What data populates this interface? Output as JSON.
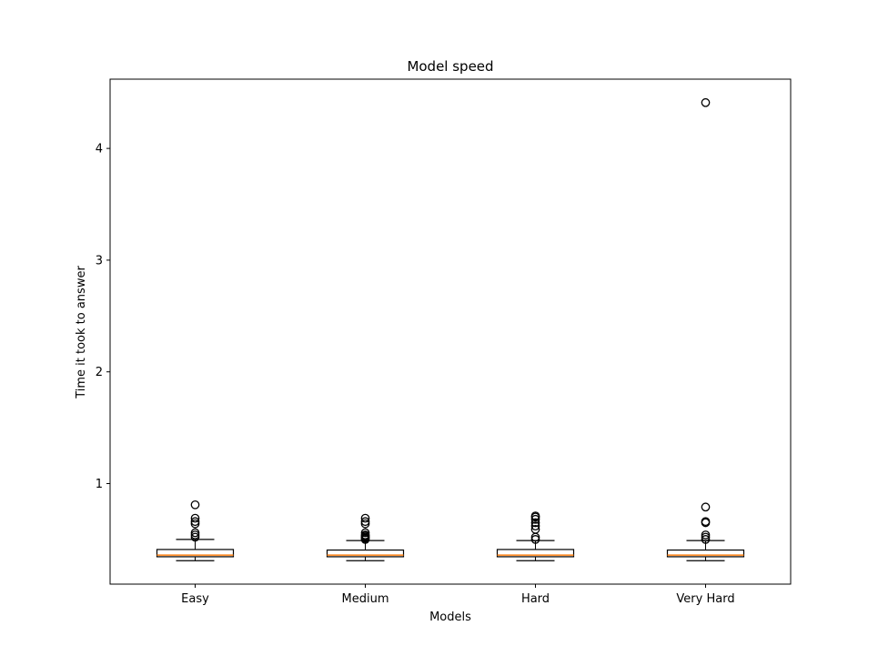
{
  "chart_data": {
    "type": "boxplot",
    "title": "Model speed",
    "xlabel": "Models",
    "ylabel": "Time it took to answer",
    "ylim": [
      0.1,
      4.62
    ],
    "yticks": [
      1,
      2,
      3,
      4
    ],
    "grid": false,
    "categories": [
      "Easy",
      "Medium",
      "Hard",
      "Very Hard"
    ],
    "boxes": [
      {
        "name": "Easy",
        "whisker_low": 0.31,
        "q1": 0.345,
        "median": 0.36,
        "q3": 0.41,
        "whisker_high": 0.5,
        "outliers": [
          0.52,
          0.54,
          0.56,
          0.64,
          0.66,
          0.69,
          0.81
        ]
      },
      {
        "name": "Medium",
        "whisker_low": 0.31,
        "q1": 0.345,
        "median": 0.36,
        "q3": 0.405,
        "whisker_high": 0.49,
        "outliers": [
          0.5,
          0.51,
          0.52,
          0.53,
          0.54,
          0.56,
          0.64,
          0.66,
          0.69
        ]
      },
      {
        "name": "Hard",
        "whisker_low": 0.31,
        "q1": 0.345,
        "median": 0.36,
        "q3": 0.41,
        "whisker_high": 0.49,
        "outliers": [
          0.5,
          0.52,
          0.59,
          0.62,
          0.65,
          0.68,
          0.7,
          0.71
        ]
      },
      {
        "name": "Very Hard",
        "whisker_low": 0.31,
        "q1": 0.345,
        "median": 0.36,
        "q3": 0.405,
        "whisker_high": 0.49,
        "outliers": [
          0.5,
          0.52,
          0.54,
          0.65,
          0.66,
          0.79,
          4.41
        ]
      }
    ],
    "colors": {
      "box": "#000000",
      "median": "#ff7f0e",
      "outlier": "#000000"
    }
  }
}
